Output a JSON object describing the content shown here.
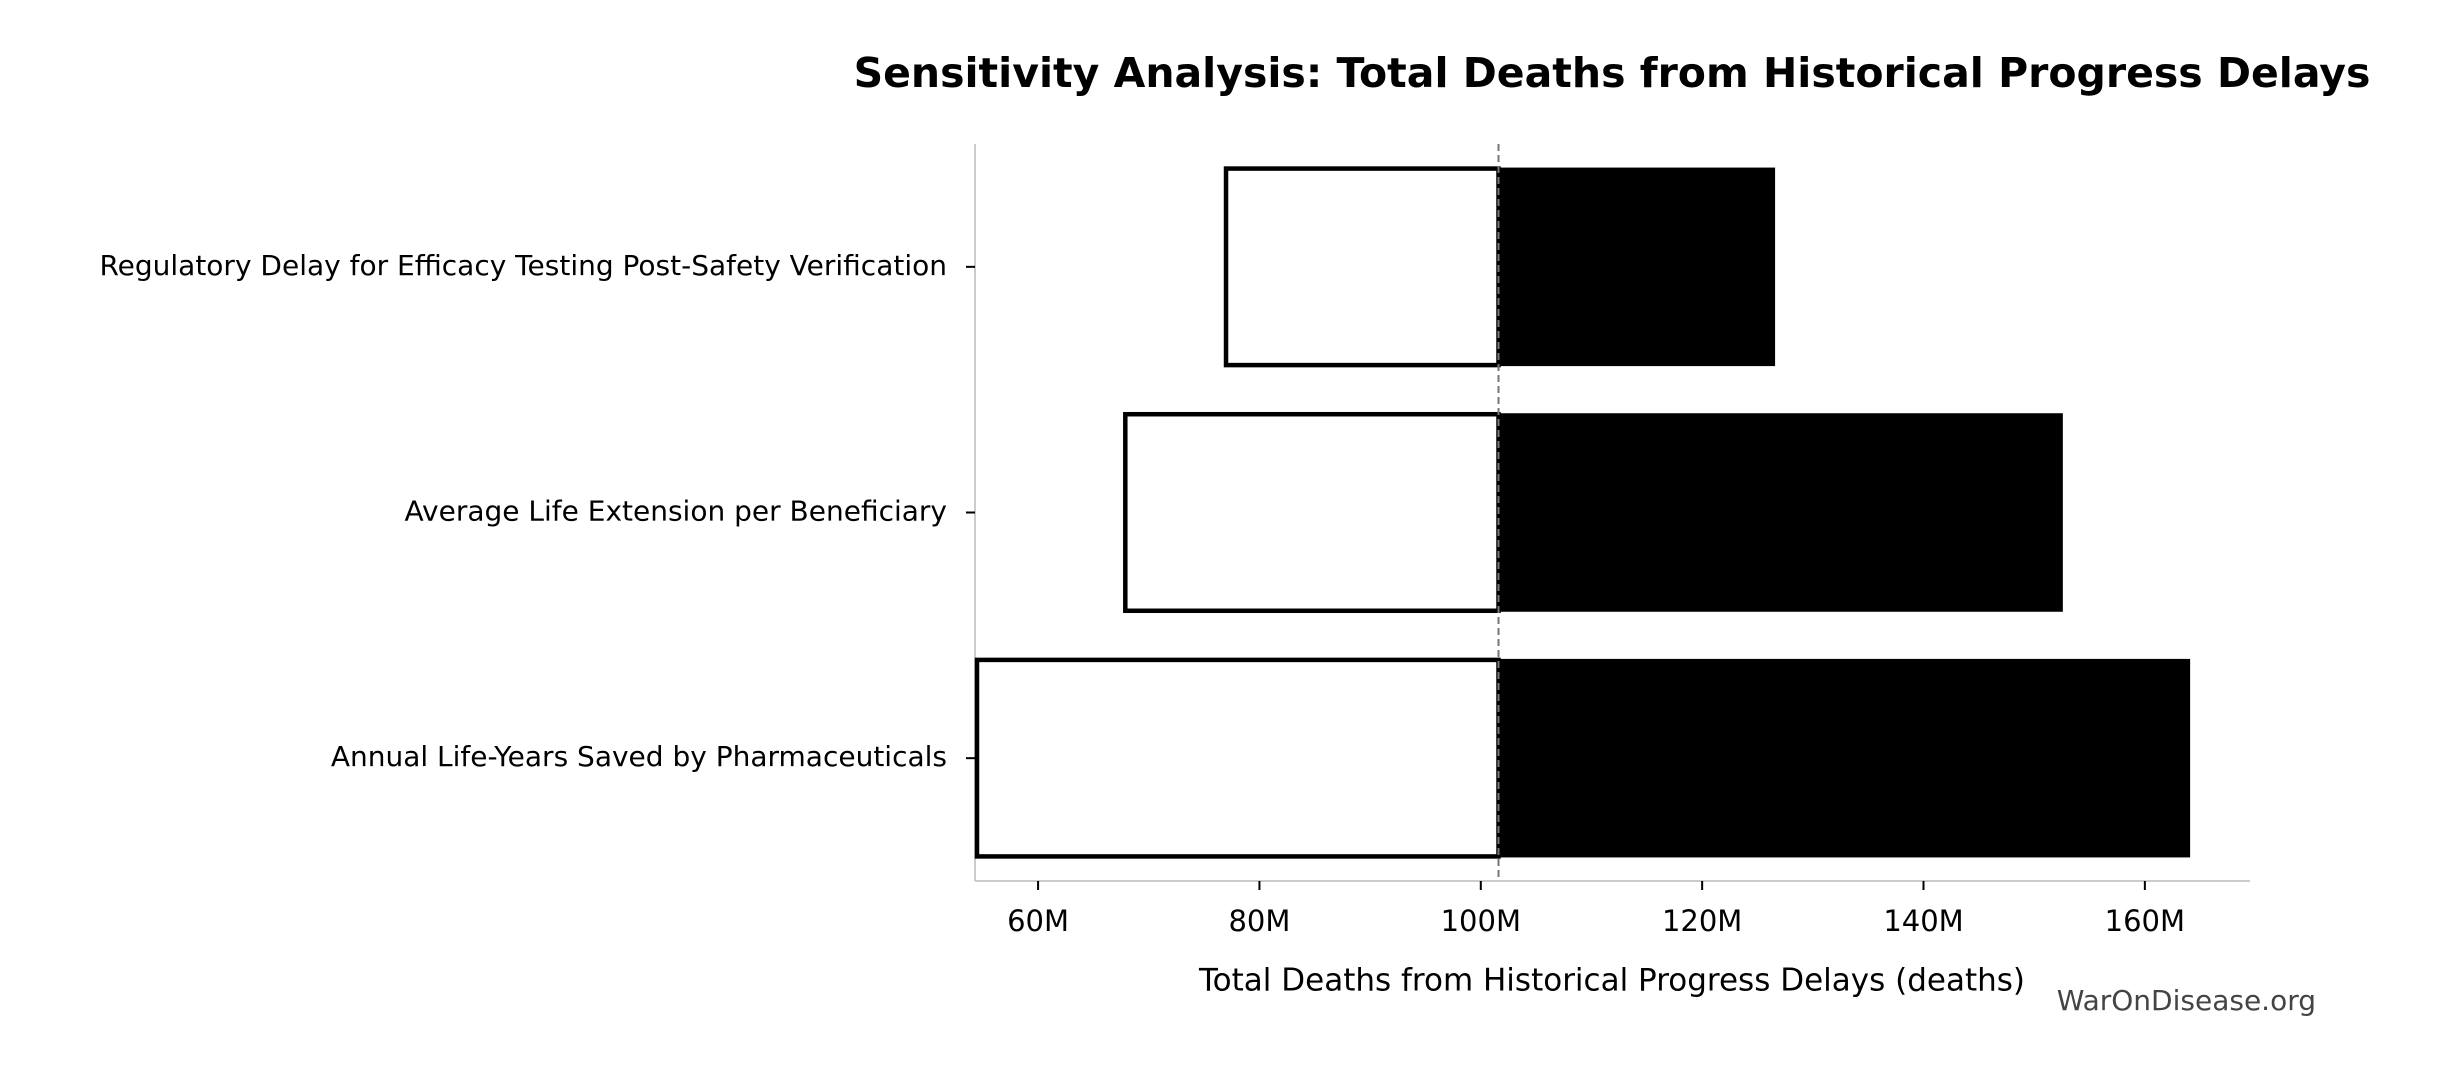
{
  "chart_data": {
    "type": "tornado",
    "title": "Sensitivity Analysis: Total Deaths from Historical Progress Delays",
    "xlabel": "Total Deaths from Historical Progress Delays (deaths)",
    "watermark": "WarOnDisease.org",
    "categories": [
      "Regulatory Delay for Efficacy Testing Post-Safety Verification",
      "Average Life Extension per Beneficiary",
      "Annual Life-Years Saved by Pharmaceuticals"
    ],
    "low": [
      76800000,
      67700000,
      54300000
    ],
    "high": [
      126500000,
      152500000,
      164000000
    ],
    "baseline": 101600000,
    "low_color": "#ffffff",
    "high_color": "#000000",
    "xlim": [
      54300000,
      169500000
    ],
    "xticks": [
      {
        "value": 60000000,
        "label": "60M"
      },
      {
        "value": 80000000,
        "label": "80M"
      },
      {
        "value": 100000000,
        "label": "100M"
      },
      {
        "value": 120000000,
        "label": "120M"
      },
      {
        "value": 140000000,
        "label": "140M"
      },
      {
        "value": 160000000,
        "label": "160M"
      }
    ]
  }
}
